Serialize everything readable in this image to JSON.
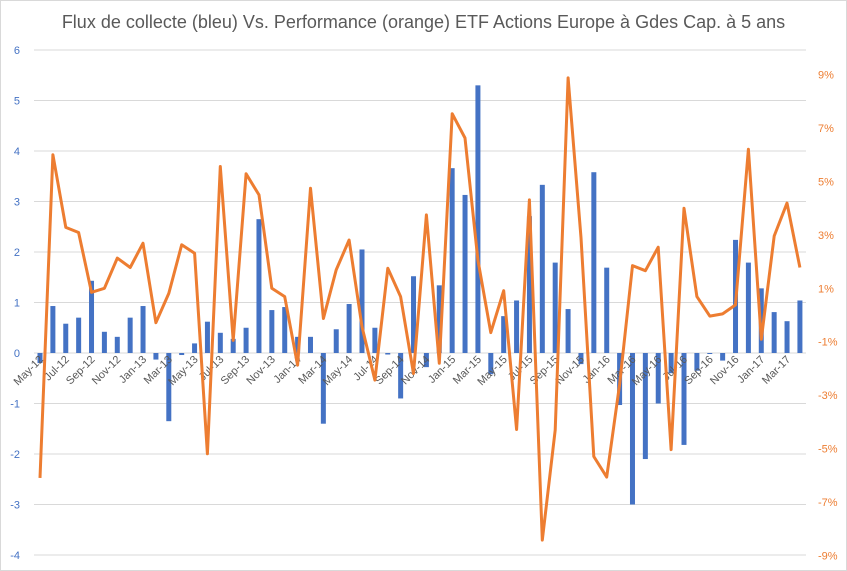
{
  "chart_data": {
    "type": "bar+line",
    "title": "Flux de collecte (bleu) Vs. Performance (orange) ETF Actions Europe à Gdes Cap. à 5 ans",
    "colors": {
      "bars": "#4472C4",
      "line": "#ED7D31",
      "grid": "#d9d9d9",
      "title": "#595959"
    },
    "left_axis": {
      "ylim": [
        -4,
        6
      ],
      "ticks": [
        "6",
        "5",
        "4",
        "3",
        "2",
        "1",
        "0",
        "-1",
        "-2",
        "-3",
        "-4"
      ],
      "tick_values": [
        6,
        5,
        4,
        3,
        2,
        1,
        0,
        -1,
        -2,
        -3,
        -4
      ]
    },
    "right_axis": {
      "ylim": [
        -9,
        9
      ],
      "ticks": [
        "9%",
        "7%",
        "5%",
        "3%",
        "1%",
        "-1%",
        "-3%",
        "-5%",
        "-7%",
        "-9%"
      ],
      "tick_values": [
        9,
        7,
        5,
        3,
        1,
        -1,
        -3,
        -5,
        -7,
        -9
      ]
    },
    "x_tick_labels": [
      "May-12",
      "Jul-12",
      "Sep-12",
      "Nov-12",
      "Jan-13",
      "Mar-13",
      "May-13",
      "Jul-13",
      "Sep-13",
      "Nov-13",
      "Jan-14",
      "Mar-14",
      "May-14",
      "Jul-14",
      "Sep-14",
      "Nov-14",
      "Jan-15",
      "Mar-15",
      "May-15",
      "Jul-15",
      "Sep-15",
      "Nov-15",
      "Jan-16",
      "Mar-16",
      "May-16",
      "Jul-16",
      "Sep-16",
      "Nov-16",
      "Jan-17",
      "Mar-17"
    ],
    "series": [
      {
        "name": "Flux de collecte",
        "type": "bar",
        "axis": "left",
        "values": [
          -0.2,
          0.93,
          0.58,
          0.7,
          1.43,
          0.42,
          0.32,
          0.7,
          0.93,
          -0.13,
          -1.35,
          -0.04,
          0.19,
          0.62,
          0.4,
          0.28,
          0.5,
          2.65,
          0.85,
          0.91,
          0.32,
          0.32,
          -1.4,
          0.47,
          0.97,
          2.05,
          0.5,
          -0.03,
          -0.9,
          1.52,
          -0.28,
          1.34,
          3.66,
          3.13,
          5.3,
          -0.42,
          0.73,
          1.04,
          2.71,
          3.33,
          1.79,
          0.87,
          -0.22,
          3.58,
          1.69,
          -1.03,
          -3.0,
          -2.1,
          -1.0,
          -0.4,
          -1.82,
          -0.35,
          -0.02,
          -0.15,
          2.24,
          1.79,
          1.28,
          0.81,
          0.63,
          1.04
        ]
      },
      {
        "name": "Performance",
        "type": "line",
        "axis": "right",
        "unit": "%",
        "values": [
          -6.1,
          6.0,
          3.28,
          3.09,
          0.85,
          1.0,
          2.13,
          1.78,
          2.69,
          -0.29,
          0.81,
          2.63,
          2.31,
          -5.2,
          5.56,
          -0.95,
          5.29,
          4.5,
          1.0,
          0.69,
          -1.88,
          4.75,
          -0.13,
          1.69,
          2.81,
          -0.44,
          -2.44,
          1.75,
          0.69,
          -2.19,
          3.75,
          -1.81,
          7.54,
          6.63,
          2.06,
          -0.66,
          0.91,
          -4.29,
          4.31,
          -8.43,
          -4.31,
          8.88,
          2.9,
          -5.3,
          -6.07,
          -2.6,
          1.85,
          1.66,
          2.54,
          -5.04,
          4.0,
          0.69,
          -0.04,
          0.04,
          0.38,
          6.21,
          -0.91,
          2.96,
          4.19,
          1.78
        ]
      }
    ]
  }
}
